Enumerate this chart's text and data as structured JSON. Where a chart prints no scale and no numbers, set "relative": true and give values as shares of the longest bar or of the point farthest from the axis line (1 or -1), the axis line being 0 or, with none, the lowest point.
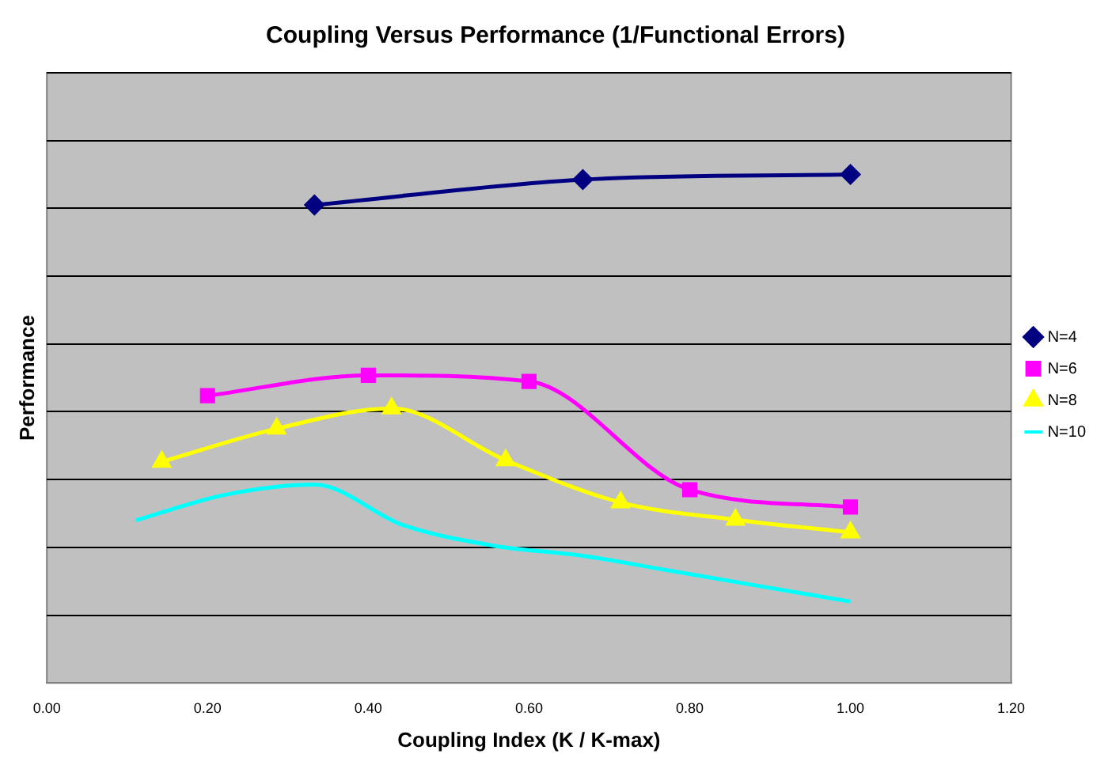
{
  "chart_data": {
    "type": "line",
    "title": "Coupling Versus Performance (1/Functional Errors)",
    "xlabel": "Coupling Index (K / K-max)",
    "ylabel": "Performance",
    "relative": true,
    "xlim": [
      0,
      1.2
    ],
    "xticks": [
      {
        "value": 0,
        "label": "0.00"
      },
      {
        "value": 0.2,
        "label": "0.20"
      },
      {
        "value": 0.4,
        "label": "0.40"
      },
      {
        "value": 0.6,
        "label": "0.60"
      },
      {
        "value": 0.8,
        "label": "0.80"
      },
      {
        "value": 1,
        "label": "1.00"
      },
      {
        "value": 1.2,
        "label": "1.20"
      }
    ],
    "grid": "y",
    "legend": "right",
    "line_style": "solid",
    "series": [
      {
        "name": "N=4",
        "color": "#000080",
        "marker": "diamond",
        "x": [
          0.333,
          0.667,
          1.0
        ],
        "values": [
          0.94,
          0.99,
          1
        ]
      },
      {
        "name": "N=6",
        "color": "#ff00ff",
        "marker": "square",
        "x": [
          0.2,
          0.4,
          0.6,
          0.8,
          1.0
        ],
        "values": [
          0.565,
          0.605,
          0.593,
          0.38,
          0.346
        ]
      },
      {
        "name": "N=8",
        "color": "#ffff00",
        "marker": "triangle",
        "x": [
          0.143,
          0.286,
          0.429,
          0.571,
          0.714,
          0.857,
          1.0
        ],
        "values": [
          0.435,
          0.5,
          0.54,
          0.438,
          0.355,
          0.321,
          0.296
        ]
      },
      {
        "name": "N=10",
        "color": "#00ffff",
        "marker": "none",
        "x": [
          0.111,
          0.222,
          0.333,
          0.444,
          0.556,
          0.667,
          0.778,
          0.889,
          1.0
        ],
        "values": [
          0.32,
          0.37,
          0.39,
          0.31,
          0.27,
          0.25,
          0.22,
          0.19,
          0.16
        ]
      }
    ]
  }
}
